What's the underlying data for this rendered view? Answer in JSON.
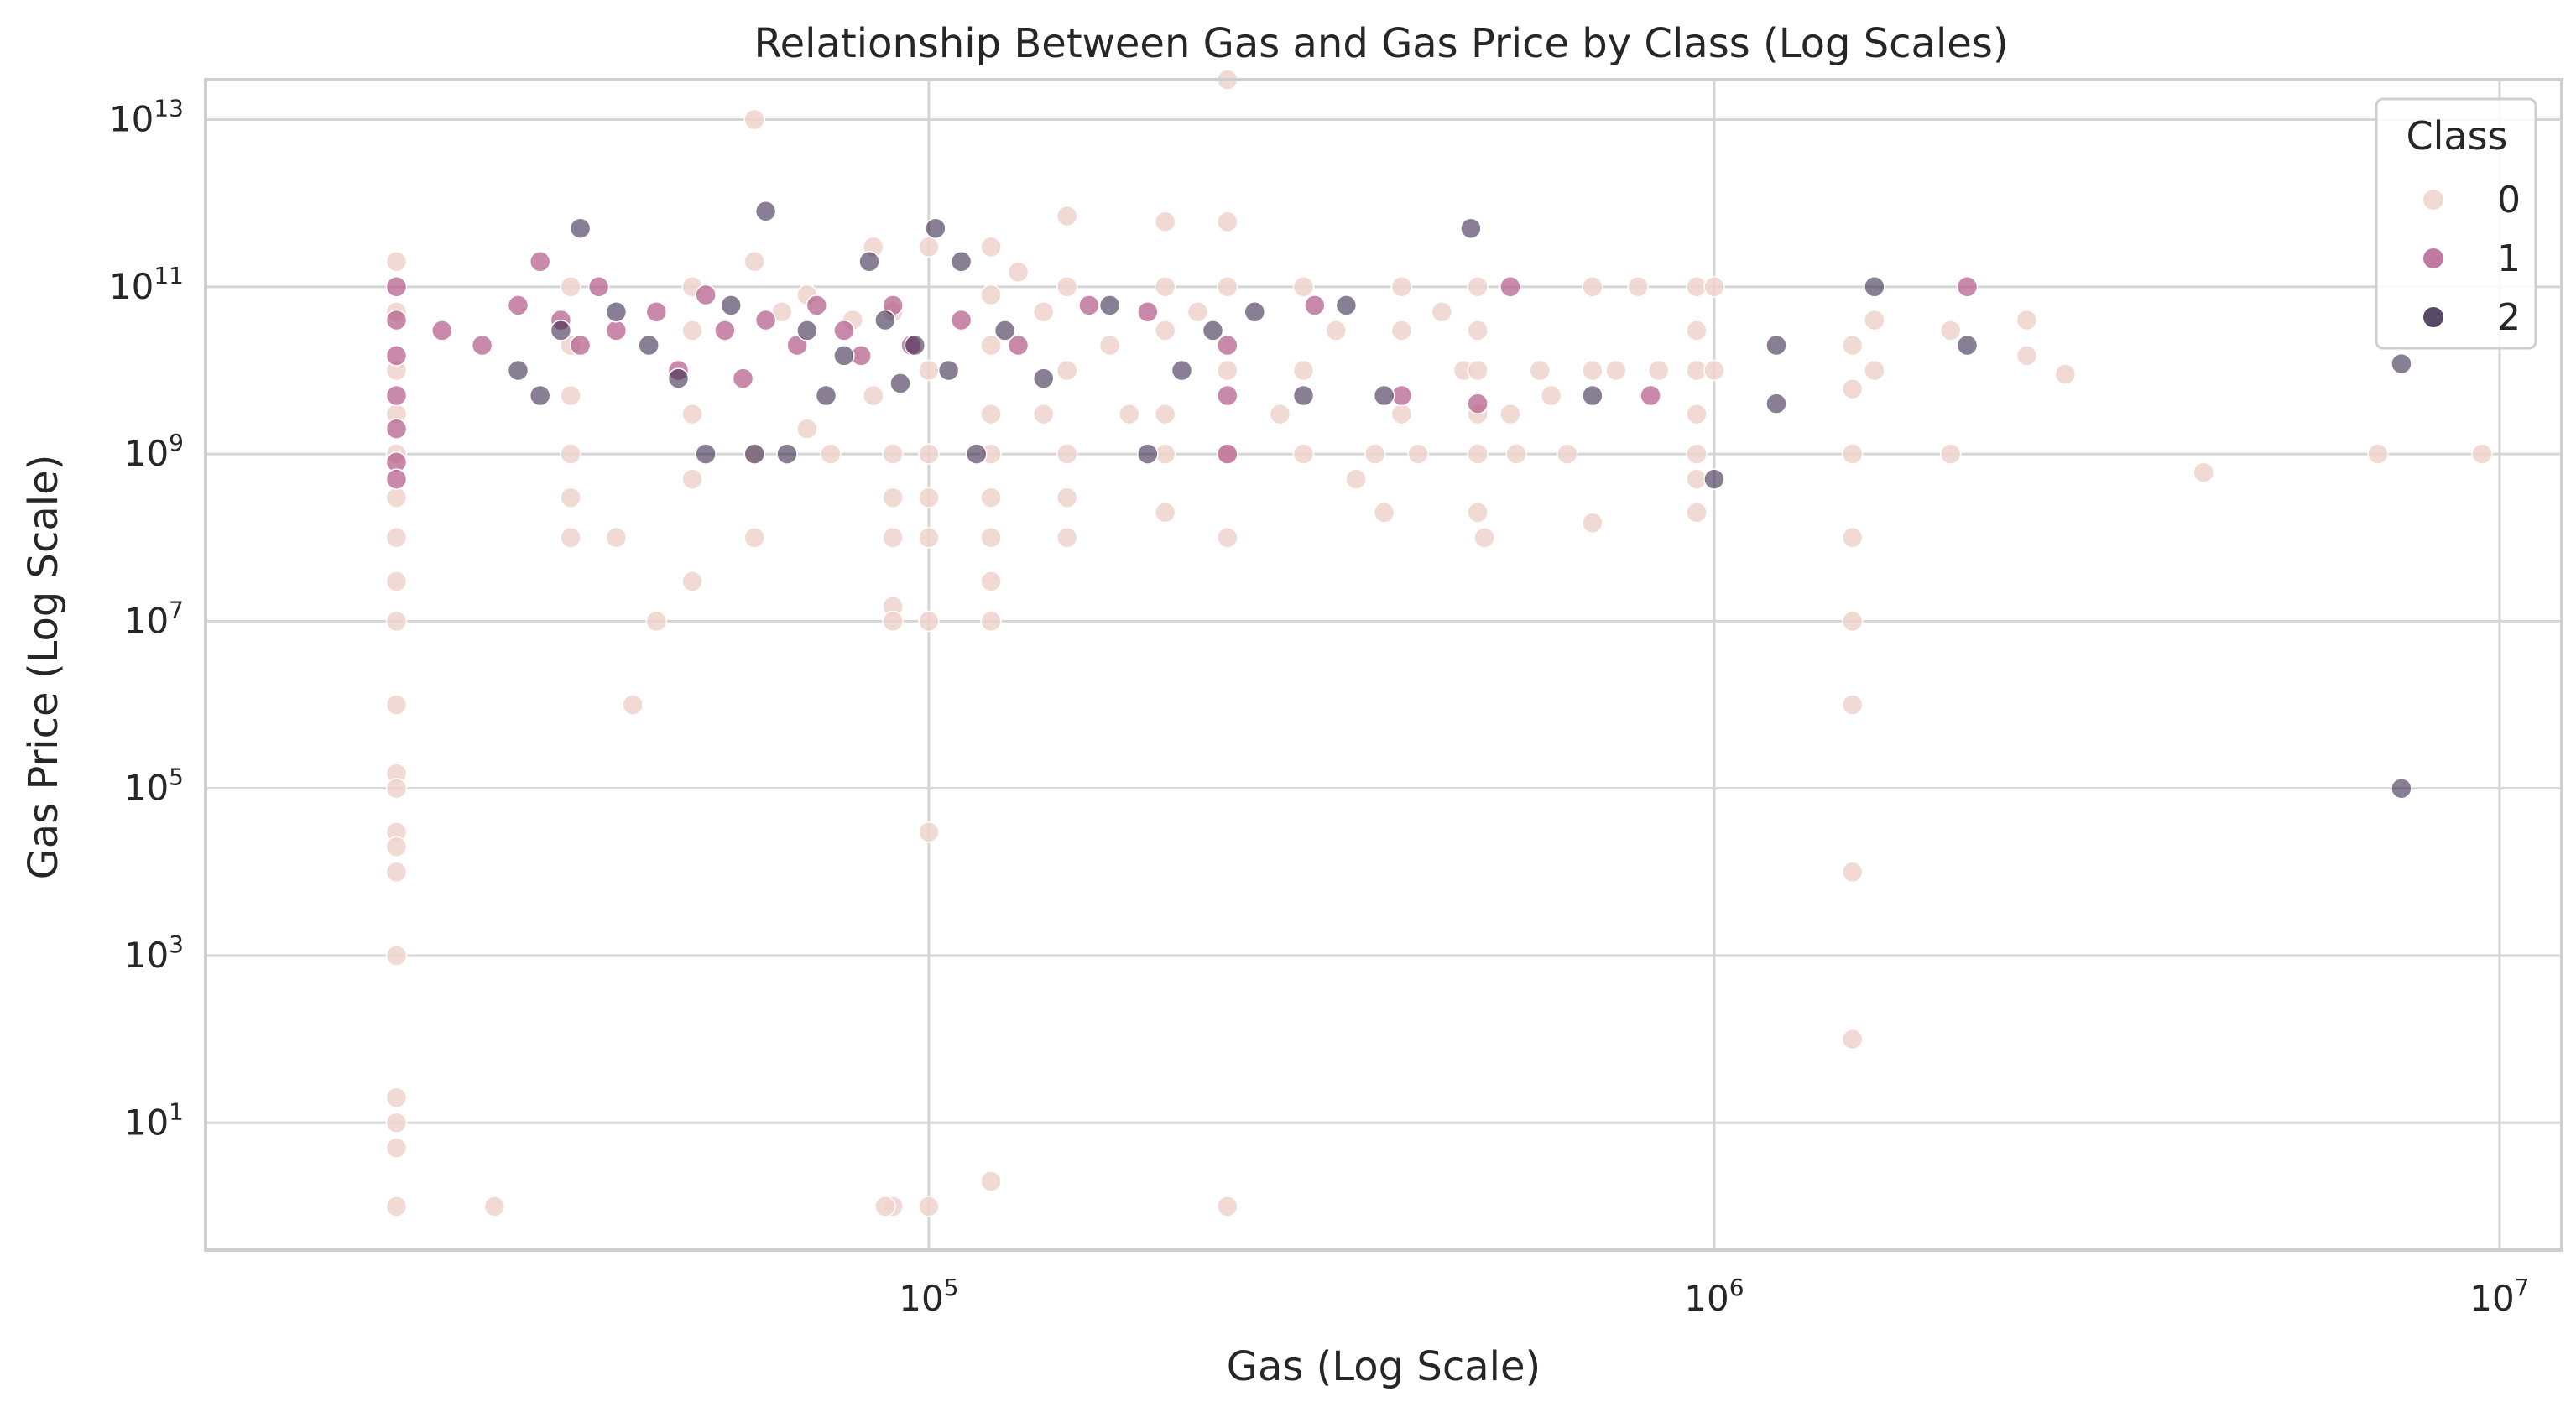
{
  "chart_data": {
    "type": "scatter",
    "title": "Relationship Between Gas and Gas Price by Class (Log Scales)",
    "xlabel": "Gas (Log Scale)",
    "ylabel": "Gas Price (Log Scale)",
    "xscale": "log",
    "yscale": "log",
    "xlim": [
      12000,
      12000000
    ],
    "ylim": [
      0.3,
      30000000000000
    ],
    "x_ticks": [
      {
        "base": "10",
        "exp": "5",
        "value": 100000
      },
      {
        "base": "10",
        "exp": "6",
        "value": 1000000
      },
      {
        "base": "10",
        "exp": "7",
        "value": 10000000
      }
    ],
    "y_ticks": [
      {
        "base": "10",
        "exp": "1",
        "value": 10
      },
      {
        "base": "10",
        "exp": "3",
        "value": 1000
      },
      {
        "base": "10",
        "exp": "5",
        "value": 100000
      },
      {
        "base": "10",
        "exp": "7",
        "value": 10000000
      },
      {
        "base": "10",
        "exp": "9",
        "value": 1000000000
      },
      {
        "base": "10",
        "exp": "11",
        "value": 100000000000
      },
      {
        "base": "10",
        "exp": "13",
        "value": 10000000000000
      }
    ],
    "grid": true,
    "legend": {
      "title": "Class",
      "placement": "top-right",
      "entries": [
        "0",
        "1",
        "2"
      ]
    },
    "colors": {
      "0": "#f0d4cd",
      "1": "#b5628f",
      "2": "#3b2a4c"
    },
    "series": [
      {
        "name": "0",
        "color": "#f0d4cd",
        "opacity": 0.85,
        "points": [
          [
            21000,
            200000000000
          ],
          [
            21000,
            50000000000
          ],
          [
            21000,
            10000000000
          ],
          [
            21000,
            3000000000
          ],
          [
            21000,
            1000000000
          ],
          [
            21000,
            300000000
          ],
          [
            21000,
            100000000
          ],
          [
            21000,
            30000000
          ],
          [
            21000,
            10000000
          ],
          [
            21000,
            1000000
          ],
          [
            21000,
            150000
          ],
          [
            21000,
            100000
          ],
          [
            21000,
            30000
          ],
          [
            21000,
            20000
          ],
          [
            21000,
            10000
          ],
          [
            21000,
            1000
          ],
          [
            21000,
            20
          ],
          [
            21000,
            10
          ],
          [
            21000,
            5
          ],
          [
            21000,
            1
          ],
          [
            28000,
            1
          ],
          [
            35000,
            100000000000
          ],
          [
            35000,
            20000000000
          ],
          [
            35000,
            5000000000
          ],
          [
            35000,
            1000000000
          ],
          [
            35000,
            300000000
          ],
          [
            35000,
            100000000
          ],
          [
            40000,
            100000000
          ],
          [
            42000,
            1000000
          ],
          [
            45000,
            10000000
          ],
          [
            50000,
            100000000000
          ],
          [
            50000,
            30000000000
          ],
          [
            50000,
            3000000000
          ],
          [
            50000,
            500000000
          ],
          [
            50000,
            30000000
          ],
          [
            60000,
            10000000000000
          ],
          [
            60000,
            100000000
          ],
          [
            60000,
            1000000000
          ],
          [
            60000,
            200000000000
          ],
          [
            65000,
            50000000000
          ],
          [
            70000,
            80000000000
          ],
          [
            70000,
            2000000000
          ],
          [
            75000,
            1000000000
          ],
          [
            80000,
            40000000000
          ],
          [
            85000,
            300000000000
          ],
          [
            85000,
            5000000000
          ],
          [
            90000,
            50000000000
          ],
          [
            90000,
            1000000000
          ],
          [
            90000,
            300000000
          ],
          [
            90000,
            100000000
          ],
          [
            90000,
            15000000
          ],
          [
            90000,
            10000000
          ],
          [
            90000,
            1
          ],
          [
            88000,
            1
          ],
          [
            100000,
            300000000000
          ],
          [
            100000,
            10000000000
          ],
          [
            100000,
            1000000000
          ],
          [
            100000,
            300000000
          ],
          [
            100000,
            100000000
          ],
          [
            100000,
            10000000
          ],
          [
            100000,
            30000
          ],
          [
            100000,
            1
          ],
          [
            120000,
            300000000000
          ],
          [
            120000,
            80000000000
          ],
          [
            120000,
            20000000000
          ],
          [
            120000,
            3000000000
          ],
          [
            120000,
            1000000000
          ],
          [
            120000,
            300000000
          ],
          [
            120000,
            100000000
          ],
          [
            120000,
            30000000
          ],
          [
            120000,
            10000000
          ],
          [
            120000,
            2
          ],
          [
            130000,
            150000000000
          ],
          [
            140000,
            50000000000
          ],
          [
            140000,
            3000000000
          ],
          [
            150000,
            700000000000
          ],
          [
            150000,
            100000000000
          ],
          [
            150000,
            10000000000
          ],
          [
            150000,
            1000000000
          ],
          [
            150000,
            300000000
          ],
          [
            150000,
            100000000
          ],
          [
            170000,
            20000000000
          ],
          [
            180000,
            3000000000
          ],
          [
            200000,
            600000000000
          ],
          [
            200000,
            100000000000
          ],
          [
            200000,
            30000000000
          ],
          [
            200000,
            3000000000
          ],
          [
            200000,
            1000000000
          ],
          [
            200000,
            200000000
          ],
          [
            220000,
            50000000000
          ],
          [
            240000,
            30000000000000
          ],
          [
            240000,
            600000000000
          ],
          [
            240000,
            100000000000
          ],
          [
            240000,
            10000000000
          ],
          [
            240000,
            1000000000
          ],
          [
            240000,
            100000000
          ],
          [
            240000,
            1
          ],
          [
            280000,
            3000000000
          ],
          [
            300000,
            100000000000
          ],
          [
            300000,
            10000000000
          ],
          [
            300000,
            1000000000
          ],
          [
            330000,
            30000000000
          ],
          [
            350000,
            500000000
          ],
          [
            370000,
            1000000000
          ],
          [
            380000,
            200000000
          ],
          [
            400000,
            100000000000
          ],
          [
            400000,
            30000000000
          ],
          [
            400000,
            3000000000
          ],
          [
            420000,
            1000000000
          ],
          [
            450000,
            50000000000
          ],
          [
            480000,
            10000000000
          ],
          [
            500000,
            100000000000
          ],
          [
            500000,
            30000000000
          ],
          [
            500000,
            10000000000
          ],
          [
            500000,
            3000000000
          ],
          [
            500000,
            1000000000
          ],
          [
            500000,
            200000000
          ],
          [
            510000,
            100000000
          ],
          [
            550000,
            3000000000
          ],
          [
            560000,
            1000000000
          ],
          [
            600000,
            10000000000
          ],
          [
            620000,
            5000000000
          ],
          [
            650000,
            1000000000
          ],
          [
            700000,
            100000000000
          ],
          [
            700000,
            10000000000
          ],
          [
            700000,
            150000000
          ],
          [
            750000,
            10000000000
          ],
          [
            800000,
            100000000000
          ],
          [
            850000,
            10000000000
          ],
          [
            950000,
            100000000000
          ],
          [
            950000,
            30000000000
          ],
          [
            950000,
            10000000000
          ],
          [
            950000,
            3000000000
          ],
          [
            950000,
            1000000000
          ],
          [
            950000,
            500000000
          ],
          [
            950000,
            200000000
          ],
          [
            1000000,
            10000000000
          ],
          [
            1000000,
            100000000000
          ],
          [
            1500000,
            20000000000
          ],
          [
            1500000,
            6000000000
          ],
          [
            1500000,
            1000000000
          ],
          [
            1500000,
            100000000
          ],
          [
            1500000,
            10000000
          ],
          [
            1500000,
            1000000
          ],
          [
            1500000,
            10000
          ],
          [
            1500000,
            100
          ],
          [
            1600000,
            40000000000
          ],
          [
            1600000,
            10000000000
          ],
          [
            2000000,
            1000000000
          ],
          [
            2000000,
            30000000000
          ],
          [
            2500000,
            40000000000
          ],
          [
            2500000,
            15000000000
          ],
          [
            2800000,
            9000000000
          ],
          [
            4200000,
            600000000
          ],
          [
            7000000,
            1000000000
          ],
          [
            9500000,
            1000000000
          ]
        ]
      },
      {
        "name": "1",
        "color": "#b5628f",
        "opacity": 0.75,
        "points": [
          [
            21000,
            100000000000
          ],
          [
            21000,
            40000000000
          ],
          [
            21000,
            15000000000
          ],
          [
            21000,
            5000000000
          ],
          [
            21000,
            2000000000
          ],
          [
            21000,
            800000000
          ],
          [
            21000,
            500000000
          ],
          [
            24000,
            30000000000
          ],
          [
            27000,
            20000000000
          ],
          [
            30000,
            60000000000
          ],
          [
            32000,
            200000000000
          ],
          [
            34000,
            40000000000
          ],
          [
            36000,
            20000000000
          ],
          [
            38000,
            100000000000
          ],
          [
            40000,
            30000000000
          ],
          [
            45000,
            50000000000
          ],
          [
            48000,
            10000000000
          ],
          [
            52000,
            80000000000
          ],
          [
            55000,
            30000000000
          ],
          [
            58000,
            8000000000
          ],
          [
            62000,
            40000000000
          ],
          [
            68000,
            20000000000
          ],
          [
            72000,
            60000000000
          ],
          [
            78000,
            30000000000
          ],
          [
            82000,
            15000000000
          ],
          [
            90000,
            60000000000
          ],
          [
            95000,
            20000000000
          ],
          [
            110000,
            40000000000
          ],
          [
            130000,
            20000000000
          ],
          [
            160000,
            60000000000
          ],
          [
            190000,
            50000000000
          ],
          [
            240000,
            20000000000
          ],
          [
            240000,
            5000000000
          ],
          [
            240000,
            1000000000
          ],
          [
            310000,
            60000000000
          ],
          [
            400000,
            5000000000
          ],
          [
            500000,
            4000000000
          ],
          [
            550000,
            100000000000
          ],
          [
            830000,
            5000000000
          ],
          [
            2100000,
            100000000000
          ]
        ]
      },
      {
        "name": "2",
        "color": "#3b2a4c",
        "opacity": 0.6,
        "points": [
          [
            30000,
            10000000000
          ],
          [
            32000,
            5000000000
          ],
          [
            34000,
            30000000000
          ],
          [
            36000,
            500000000000
          ],
          [
            40000,
            50000000000
          ],
          [
            44000,
            20000000000
          ],
          [
            48000,
            8000000000
          ],
          [
            52000,
            1000000000
          ],
          [
            56000,
            60000000000
          ],
          [
            60000,
            1000000000
          ],
          [
            62000,
            800000000000
          ],
          [
            66000,
            1000000000
          ],
          [
            70000,
            30000000000
          ],
          [
            74000,
            5000000000
          ],
          [
            78000,
            15000000000
          ],
          [
            84000,
            200000000000
          ],
          [
            88000,
            40000000000
          ],
          [
            92000,
            7000000000
          ],
          [
            96000,
            20000000000
          ],
          [
            102000,
            500000000000
          ],
          [
            106000,
            10000000000
          ],
          [
            110000,
            200000000000
          ],
          [
            115000,
            1000000000
          ],
          [
            125000,
            30000000000
          ],
          [
            140000,
            8000000000
          ],
          [
            170000,
            60000000000
          ],
          [
            190000,
            1000000000
          ],
          [
            210000,
            10000000000
          ],
          [
            230000,
            30000000000
          ],
          [
            260000,
            50000000000
          ],
          [
            300000,
            5000000000
          ],
          [
            340000,
            60000000000
          ],
          [
            380000,
            5000000000
          ],
          [
            490000,
            500000000000
          ],
          [
            700000,
            5000000000
          ],
          [
            1000000,
            500000000
          ],
          [
            1200000,
            20000000000
          ],
          [
            1200000,
            4000000000
          ],
          [
            1600000,
            100000000000
          ],
          [
            2100000,
            20000000000
          ],
          [
            7500000,
            12000000000
          ],
          [
            7500000,
            100000
          ]
        ]
      }
    ]
  }
}
